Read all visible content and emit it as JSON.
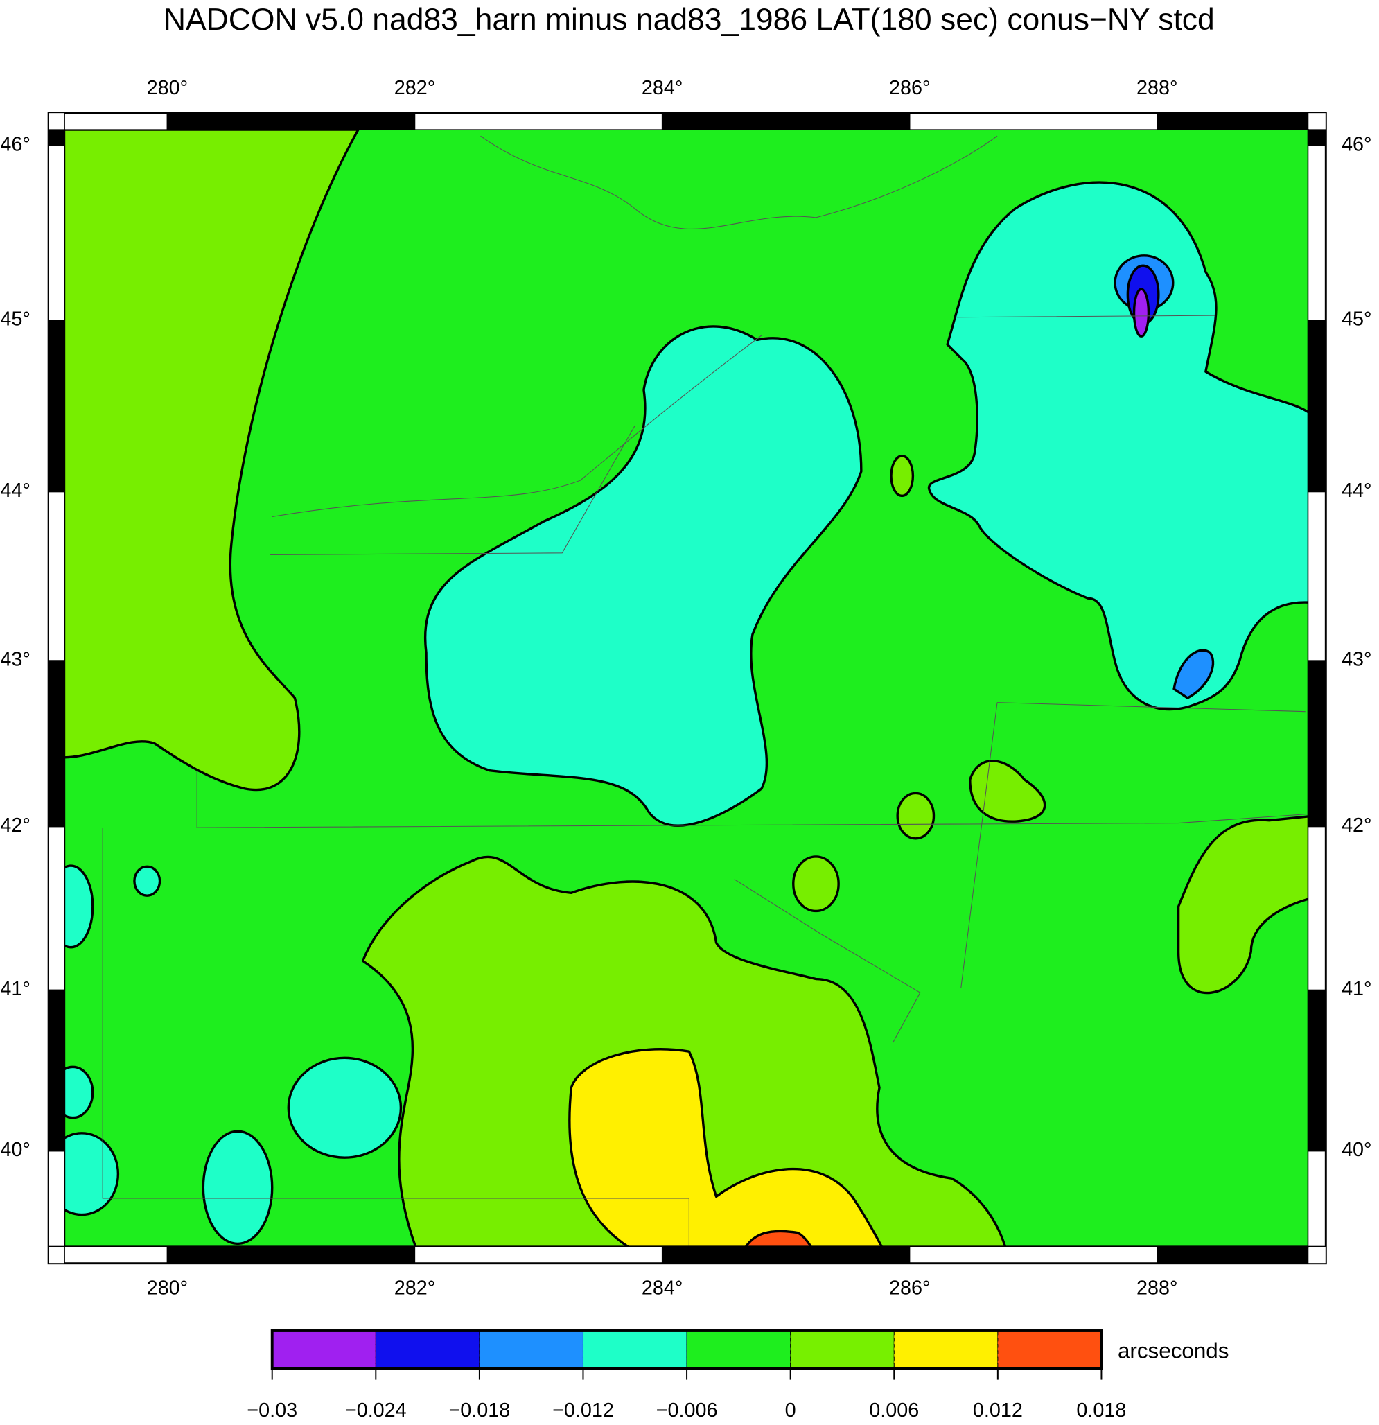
{
  "title": "NADCON v5.0 nad83_harn minus nad83_1986 LAT(180 sec) conus−NY stcd",
  "map": {
    "xlim": [
      279.17,
      289.22
    ],
    "ylim": [
      39.4,
      46.09
    ],
    "xticks": [
      {
        "value": 280,
        "label": "280°"
      },
      {
        "value": 282,
        "label": "282°"
      },
      {
        "value": 284,
        "label": "284°"
      },
      {
        "value": 286,
        "label": "286°"
      },
      {
        "value": 288,
        "label": "288°"
      }
    ],
    "yticks": [
      {
        "value": 40,
        "label": "40°"
      },
      {
        "value": 41,
        "label": "41°"
      },
      {
        "value": 42,
        "label": "42°"
      },
      {
        "value": 43,
        "label": "43°"
      },
      {
        "value": 44,
        "label": "44°"
      },
      {
        "value": 45,
        "label": "45°"
      },
      {
        "value": 46,
        "label": "46°"
      }
    ]
  },
  "colorbar": {
    "label": "arcseconds",
    "ticks": [
      {
        "value": -0.03,
        "label": "−0.03"
      },
      {
        "value": -0.024,
        "label": "−0.024"
      },
      {
        "value": -0.018,
        "label": "−0.018"
      },
      {
        "value": -0.012,
        "label": "−0.012"
      },
      {
        "value": -0.006,
        "label": "−0.006"
      },
      0,
      0.006,
      0.012,
      0.018
    ],
    "colors": [
      "#a020f0",
      "#1010ee",
      "#1e90ff",
      "#1effc8",
      "#1eee1e",
      "#77f000",
      "#fff000",
      "#ff5010"
    ]
  }
}
